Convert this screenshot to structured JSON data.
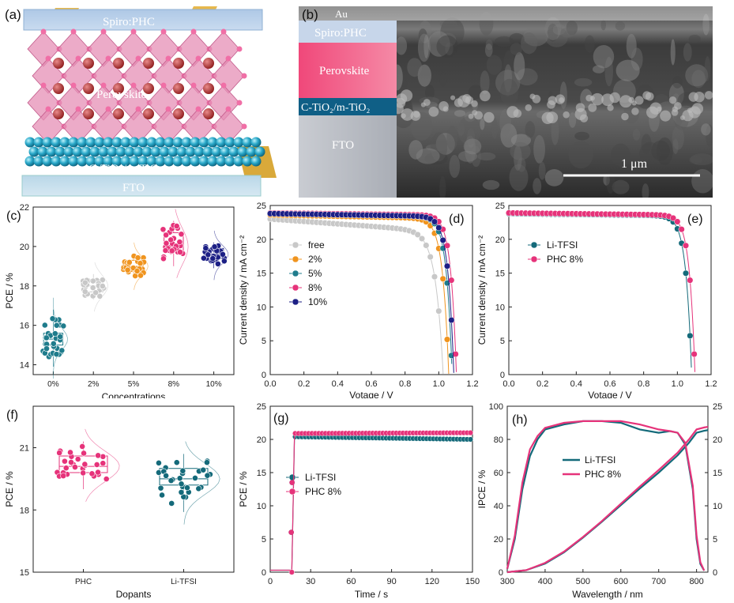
{
  "colors": {
    "free": "#c8c8c8",
    "c2": "#f0941e",
    "c5": "#1f7c8c",
    "c8": "#e6337a",
    "c10": "#1c1f85",
    "li_tfsi": "#146a7a",
    "phc": "#e6337a"
  },
  "panel_a": {
    "label": "(a)",
    "layers": {
      "top": "Spiro:PHC",
      "middle": "Perovskite",
      "etl": "C-TiO₂/m-TiO₂",
      "bottom": "FTO"
    }
  },
  "panel_b": {
    "label": "(b)",
    "layers": {
      "au": "Au",
      "spiro": "Spiro:PHC",
      "perov": "Perovskite",
      "etl": "C-TiO₂/m-TiO₂",
      "fto": "FTO"
    },
    "scale": "1 μm"
  },
  "chart_data": [
    {
      "id": "c",
      "label": "(c)",
      "type": "box-scatter",
      "xlabel": "Concentrations",
      "ylabel": "PCE / %",
      "categories": [
        "0%",
        "2%",
        "5%",
        "8%",
        "10%"
      ],
      "ylim": [
        13.5,
        22
      ],
      "yticks": [
        14,
        16,
        18,
        20,
        22
      ],
      "boxes": [
        {
          "q1": 15.0,
          "median": 15.3,
          "q3": 15.6,
          "min": 13.9,
          "max": 16.8,
          "mean": 15.3
        },
        {
          "q1": 17.7,
          "median": 18.0,
          "q3": 18.3,
          "min": 17.3,
          "max": 18.6,
          "mean": 18.0
        },
        {
          "q1": 18.8,
          "median": 19.0,
          "q3": 19.3,
          "min": 18.4,
          "max": 19.6,
          "mean": 19.0
        },
        {
          "q1": 19.7,
          "median": 20.0,
          "q3": 20.7,
          "min": 19.0,
          "max": 21.3,
          "mean": 20.1
        },
        {
          "q1": 19.4,
          "median": 19.6,
          "q3": 19.9,
          "min": 18.9,
          "max": 20.2,
          "mean": 19.6
        }
      ]
    },
    {
      "id": "d",
      "label": "(d)",
      "type": "line",
      "xlabel": "Votage / V",
      "ylabel": "Current density / mA cm⁻²",
      "xlim": [
        0,
        1.2
      ],
      "ylim": [
        0,
        25
      ],
      "xticks": [
        0.0,
        0.2,
        0.4,
        0.6,
        0.8,
        1.0,
        1.2
      ],
      "yticks": [
        0,
        5,
        10,
        15,
        20,
        25
      ],
      "legend": "left",
      "series": [
        {
          "name": "free",
          "color_key": "free",
          "jsc": 23.0,
          "voc": 1.03,
          "slope0": 1.8,
          "n": 0.045
        },
        {
          "name": "2%",
          "color_key": "c2",
          "jsc": 23.6,
          "voc": 1.06,
          "slope0": 0.5,
          "n": 0.036
        },
        {
          "name": "5%",
          "color_key": "c5",
          "jsc": 23.8,
          "voc": 1.08,
          "slope0": 0.4,
          "n": 0.034
        },
        {
          "name": "8%",
          "color_key": "c8",
          "jsc": 23.9,
          "voc": 1.105,
          "slope0": 0.3,
          "n": 0.033
        },
        {
          "name": "10%",
          "color_key": "c10",
          "jsc": 23.8,
          "voc": 1.09,
          "slope0": 0.4,
          "n": 0.034
        }
      ]
    },
    {
      "id": "e",
      "label": "(e)",
      "type": "line",
      "xlabel": "Votage / V",
      "ylabel": "Current density / mA cm⁻²",
      "xlim": [
        0,
        1.2
      ],
      "ylim": [
        0,
        25
      ],
      "xticks": [
        0.0,
        0.2,
        0.4,
        0.6,
        0.8,
        1.0,
        1.2
      ],
      "yticks": [
        0,
        5,
        10,
        15,
        20,
        25
      ],
      "legend": "left",
      "series": [
        {
          "name": "Li-TFSI",
          "color_key": "li_tfsi",
          "jsc": 23.8,
          "voc": 1.085,
          "slope0": 0.3,
          "n": 0.034
        },
        {
          "name": "PHC 8%",
          "color_key": "phc",
          "jsc": 23.9,
          "voc": 1.105,
          "slope0": 0.3,
          "n": 0.033
        }
      ]
    },
    {
      "id": "f",
      "label": "(f)",
      "type": "box-scatter",
      "xlabel": "Dopants",
      "ylabel": "PCE / %",
      "categories": [
        "PHC",
        "Li-TFSI"
      ],
      "ylim": [
        15,
        23
      ],
      "yticks": [
        15,
        18,
        21
      ],
      "boxes": [
        {
          "q1": 19.8,
          "median": 20.1,
          "q3": 20.6,
          "min": 19.0,
          "max": 21.3,
          "mean": 20.1
        },
        {
          "q1": 19.2,
          "median": 19.5,
          "q3": 20.0,
          "min": 17.9,
          "max": 20.7,
          "mean": 19.5
        }
      ]
    },
    {
      "id": "g",
      "label": "(g)",
      "type": "line",
      "xlabel": "Time / s",
      "ylabel": "PCE / %",
      "xlim": [
        0,
        150
      ],
      "ylim": [
        0,
        25
      ],
      "xticks": [
        0,
        30,
        60,
        90,
        120,
        150
      ],
      "yticks": [
        0,
        5,
        10,
        15,
        20,
        25
      ],
      "legend": "left",
      "series": [
        {
          "name": "Li-TFSI",
          "color_key": "li_tfsi",
          "start": 16,
          "plateau_start": 20.4,
          "plateau_end": 20.0
        },
        {
          "name": "PHC 8%",
          "color_key": "phc",
          "start": 16,
          "plateau_start": 20.9,
          "plateau_end": 21.0
        }
      ]
    },
    {
      "id": "h",
      "label": "(h)",
      "type": "line",
      "xlabel": "Wavelength / nm",
      "ylabel": "IPCE / %",
      "xlim": [
        300,
        830
      ],
      "ylim": [
        0,
        100
      ],
      "y2lim": [
        0,
        25
      ],
      "xticks": [
        300,
        400,
        500,
        600,
        700,
        800
      ],
      "yticks": [
        0,
        20,
        40,
        60,
        80,
        100
      ],
      "y2ticks": [
        0,
        5,
        10,
        15,
        20,
        25
      ],
      "legend": "center",
      "series": [
        {
          "name": "Li-TFSI",
          "color_key": "li_tfsi",
          "ipce": [
            [
              300,
              2
            ],
            [
              320,
              20
            ],
            [
              340,
              50
            ],
            [
              360,
              70
            ],
            [
              380,
              80
            ],
            [
              400,
              86
            ],
            [
              450,
              89
            ],
            [
              500,
              91
            ],
            [
              550,
              91
            ],
            [
              600,
              90
            ],
            [
              650,
              86
            ],
            [
              700,
              84
            ],
            [
              730,
              85
            ],
            [
              750,
              84
            ],
            [
              770,
              77
            ],
            [
              790,
              50
            ],
            [
              800,
              20
            ],
            [
              810,
              5
            ],
            [
              820,
              1
            ]
          ],
          "integrated": [
            [
              300,
              0
            ],
            [
              350,
              0.3
            ],
            [
              400,
              1.3
            ],
            [
              450,
              3.0
            ],
            [
              500,
              5.2
            ],
            [
              550,
              7.6
            ],
            [
              600,
              10.1
            ],
            [
              650,
              12.6
            ],
            [
              700,
              15.0
            ],
            [
              750,
              17.6
            ],
            [
              780,
              19.5
            ],
            [
              800,
              21.0
            ],
            [
              820,
              21.3
            ],
            [
              830,
              21.4
            ]
          ]
        },
        {
          "name": "PHC 8%",
          "color_key": "phc",
          "ipce": [
            [
              300,
              2
            ],
            [
              320,
              22
            ],
            [
              340,
              54
            ],
            [
              360,
              74
            ],
            [
              380,
              82
            ],
            [
              400,
              87
            ],
            [
              450,
              90
            ],
            [
              500,
              91
            ],
            [
              550,
              91
            ],
            [
              600,
              91
            ],
            [
              650,
              89
            ],
            [
              700,
              86
            ],
            [
              730,
              85
            ],
            [
              750,
              84
            ],
            [
              770,
              78
            ],
            [
              790,
              52
            ],
            [
              800,
              22
            ],
            [
              810,
              6
            ],
            [
              820,
              1
            ]
          ],
          "integrated": [
            [
              300,
              0
            ],
            [
              350,
              0.3
            ],
            [
              400,
              1.4
            ],
            [
              450,
              3.1
            ],
            [
              500,
              5.3
            ],
            [
              550,
              7.7
            ],
            [
              600,
              10.3
            ],
            [
              650,
              12.9
            ],
            [
              700,
              15.4
            ],
            [
              750,
              18.0
            ],
            [
              780,
              20.0
            ],
            [
              800,
              21.5
            ],
            [
              820,
              21.8
            ],
            [
              830,
              21.9
            ]
          ]
        }
      ]
    }
  ]
}
